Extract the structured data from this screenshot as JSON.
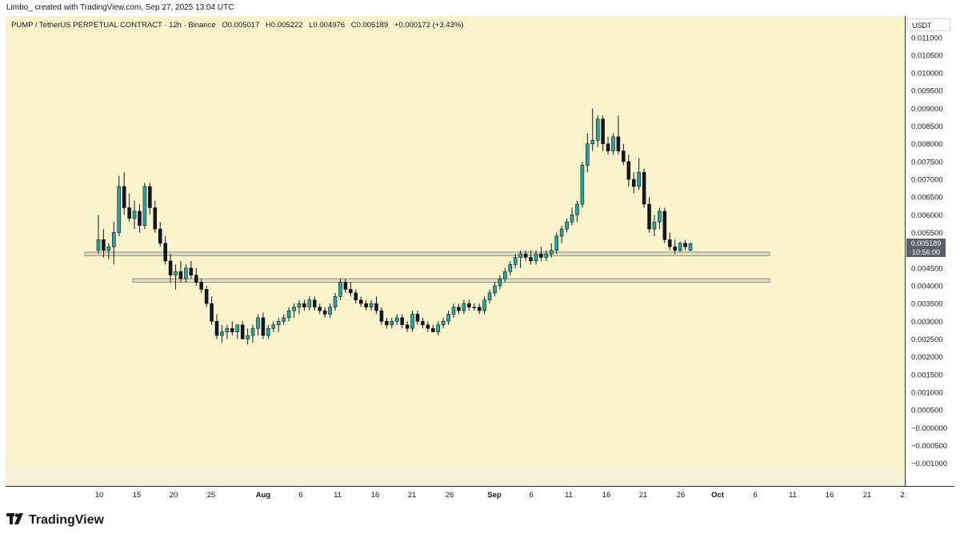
{
  "header": {
    "credit": "Limbo_ created with TradingView.com, Sep 27, 2025 13:04 UTC"
  },
  "legend": {
    "symbol": "PUMP / TetherUS PERPETUAL CONTRACT · 12h · Binance",
    "open": "O0.005017",
    "high": "H0.005222",
    "low": "L0.004976",
    "close": "C0.005189",
    "change": "+0.000172 (+3.43%)"
  },
  "price_axis": {
    "currency": "USDT",
    "ticks": [
      "0.011000",
      "0.010500",
      "0.010000",
      "0.009500",
      "0.009000",
      "0.008500",
      "0.008000",
      "0.007500",
      "0.007000",
      "0.006500",
      "0.006000",
      "0.005500",
      "0.004500",
      "0.004000",
      "0.003500",
      "0.003000",
      "0.002500",
      "0.002000",
      "0.001500",
      "0.001000",
      "0.000500",
      "−0.000000",
      "−0.000500",
      "−0.001000"
    ],
    "last_price": "0.005189",
    "countdown": "10:56:00"
  },
  "time_axis": {
    "ticks": [
      "10",
      "15",
      "20",
      "25",
      "Aug",
      "6",
      "11",
      "16",
      "21",
      "26",
      "Sep",
      "6",
      "11",
      "16",
      "21",
      "26",
      "Oct",
      "6",
      "11",
      "16",
      "21",
      "2"
    ]
  },
  "colors": {
    "background": "#faf4cd",
    "up": "#26a69a",
    "down": "#131722",
    "band": "#e2e0c4",
    "band_border": "#8e8c7a"
  },
  "logo": {
    "text": "TradingView"
  },
  "chart_data": {
    "type": "candlestick",
    "title": "PUMP / TetherUS PERPETUAL CONTRACT · 12h · Binance",
    "x_start": "Jul 9",
    "x_end": "Sep 27",
    "ylim": [
      -0.0011,
      0.0112
    ],
    "ohlc": [
      [
        0.005,
        0.006,
        0.0049,
        0.0053
      ],
      [
        0.0053,
        0.0056,
        0.0048,
        0.005
      ],
      [
        0.005,
        0.0052,
        0.00475,
        0.0051
      ],
      [
        0.0051,
        0.0058,
        0.0046,
        0.0055
      ],
      [
        0.0055,
        0.0071,
        0.0054,
        0.0068
      ],
      [
        0.0068,
        0.0072,
        0.006,
        0.0062
      ],
      [
        0.0062,
        0.0066,
        0.0058,
        0.0059
      ],
      [
        0.0059,
        0.0064,
        0.0056,
        0.0061
      ],
      [
        0.0061,
        0.0063,
        0.0055,
        0.0057
      ],
      [
        0.0057,
        0.0069,
        0.0056,
        0.0068
      ],
      [
        0.0068,
        0.0069,
        0.006,
        0.0062
      ],
      [
        0.0062,
        0.0064,
        0.0055,
        0.0056
      ],
      [
        0.0056,
        0.0058,
        0.0051,
        0.0052
      ],
      [
        0.0052,
        0.0054,
        0.0046,
        0.0047
      ],
      [
        0.0047,
        0.0049,
        0.0041,
        0.0043
      ],
      [
        0.0043,
        0.0046,
        0.0039,
        0.0044
      ],
      [
        0.0044,
        0.0047,
        0.0041,
        0.0042
      ],
      [
        0.0042,
        0.0046,
        0.0041,
        0.0045
      ],
      [
        0.0045,
        0.0047,
        0.0042,
        0.0043
      ],
      [
        0.0043,
        0.0045,
        0.004,
        0.0041
      ],
      [
        0.0041,
        0.0042,
        0.0038,
        0.0039
      ],
      [
        0.0039,
        0.004,
        0.0034,
        0.0035
      ],
      [
        0.0035,
        0.0037,
        0.0029,
        0.003
      ],
      [
        0.003,
        0.0032,
        0.0025,
        0.0026
      ],
      [
        0.0026,
        0.0029,
        0.0024,
        0.0027
      ],
      [
        0.0027,
        0.0029,
        0.0025,
        0.0028
      ],
      [
        0.0028,
        0.003,
        0.0026,
        0.0027
      ],
      [
        0.0027,
        0.0029,
        0.0025,
        0.0029
      ],
      [
        0.0029,
        0.003,
        0.0025,
        0.0025
      ],
      [
        0.0025,
        0.0028,
        0.00235,
        0.0026
      ],
      [
        0.0026,
        0.0029,
        0.0024,
        0.0028
      ],
      [
        0.0028,
        0.0032,
        0.0026,
        0.0031
      ],
      [
        0.0031,
        0.00325,
        0.0025,
        0.0026
      ],
      [
        0.0026,
        0.0029,
        0.0025,
        0.0028
      ],
      [
        0.0028,
        0.003,
        0.0027,
        0.0029
      ],
      [
        0.0029,
        0.0031,
        0.0027,
        0.003
      ],
      [
        0.003,
        0.0032,
        0.0029,
        0.0031
      ],
      [
        0.0031,
        0.0034,
        0.003,
        0.0033
      ],
      [
        0.0033,
        0.0035,
        0.0031,
        0.0034
      ],
      [
        0.0034,
        0.0036,
        0.0032,
        0.0035
      ],
      [
        0.0035,
        0.0036,
        0.0033,
        0.0034
      ],
      [
        0.0034,
        0.0037,
        0.0033,
        0.0036
      ],
      [
        0.0036,
        0.0037,
        0.0033,
        0.0034
      ],
      [
        0.0034,
        0.0035,
        0.0032,
        0.0033
      ],
      [
        0.0033,
        0.0034,
        0.0031,
        0.0032
      ],
      [
        0.0032,
        0.0035,
        0.0031,
        0.0034
      ],
      [
        0.0034,
        0.0038,
        0.0033,
        0.0037
      ],
      [
        0.0037,
        0.0042,
        0.0036,
        0.0041
      ],
      [
        0.0041,
        0.0042,
        0.0038,
        0.0039
      ],
      [
        0.0039,
        0.0041,
        0.0037,
        0.0038
      ],
      [
        0.0038,
        0.0039,
        0.0035,
        0.0036
      ],
      [
        0.0036,
        0.0037,
        0.0034,
        0.0035
      ],
      [
        0.0035,
        0.0036,
        0.0033,
        0.0034
      ],
      [
        0.0034,
        0.0036,
        0.0033,
        0.0035
      ],
      [
        0.0035,
        0.0037,
        0.0032,
        0.0033
      ],
      [
        0.0033,
        0.0034,
        0.0029,
        0.003
      ],
      [
        0.003,
        0.0031,
        0.0028,
        0.0029
      ],
      [
        0.0029,
        0.0031,
        0.0028,
        0.003
      ],
      [
        0.003,
        0.0032,
        0.0029,
        0.0031
      ],
      [
        0.0031,
        0.0032,
        0.0028,
        0.0029
      ],
      [
        0.0029,
        0.003,
        0.0027,
        0.0028
      ],
      [
        0.0028,
        0.0033,
        0.0027,
        0.0032
      ],
      [
        0.0032,
        0.0033,
        0.0029,
        0.003
      ],
      [
        0.003,
        0.0031,
        0.0028,
        0.0029
      ],
      [
        0.0029,
        0.003,
        0.0027,
        0.0028
      ],
      [
        0.0028,
        0.0029,
        0.0027,
        0.0027
      ],
      [
        0.0027,
        0.003,
        0.0026,
        0.0029
      ],
      [
        0.0029,
        0.0031,
        0.0028,
        0.003
      ],
      [
        0.003,
        0.0033,
        0.0029,
        0.0032
      ],
      [
        0.0032,
        0.0035,
        0.0031,
        0.0034
      ],
      [
        0.0034,
        0.0035,
        0.0032,
        0.0033
      ],
      [
        0.0033,
        0.0036,
        0.0032,
        0.0035
      ],
      [
        0.0035,
        0.0036,
        0.0033,
        0.0034
      ],
      [
        0.0034,
        0.0035,
        0.0033,
        0.0034
      ],
      [
        0.0034,
        0.0035,
        0.0032,
        0.0033
      ],
      [
        0.0033,
        0.0037,
        0.0032,
        0.0036
      ],
      [
        0.0036,
        0.0039,
        0.0035,
        0.0038
      ],
      [
        0.0038,
        0.0041,
        0.0037,
        0.004
      ],
      [
        0.004,
        0.0043,
        0.0039,
        0.0042
      ],
      [
        0.0042,
        0.0045,
        0.0041,
        0.0044
      ],
      [
        0.0044,
        0.0047,
        0.0043,
        0.0046
      ],
      [
        0.0046,
        0.0049,
        0.0045,
        0.0048
      ],
      [
        0.0048,
        0.005,
        0.0045,
        0.0049
      ],
      [
        0.0049,
        0.005,
        0.0047,
        0.0048
      ],
      [
        0.0048,
        0.005,
        0.0046,
        0.0047
      ],
      [
        0.0047,
        0.005,
        0.0046,
        0.0049
      ],
      [
        0.0049,
        0.0051,
        0.0047,
        0.0048
      ],
      [
        0.0048,
        0.005,
        0.0047,
        0.0049
      ],
      [
        0.0049,
        0.0052,
        0.0048,
        0.005
      ],
      [
        0.005,
        0.0055,
        0.0049,
        0.0054
      ],
      [
        0.0054,
        0.0057,
        0.0052,
        0.0056
      ],
      [
        0.0056,
        0.0059,
        0.0055,
        0.0058
      ],
      [
        0.0058,
        0.0062,
        0.0057,
        0.006
      ],
      [
        0.006,
        0.0064,
        0.0058,
        0.0063
      ],
      [
        0.0063,
        0.0075,
        0.0062,
        0.0074
      ],
      [
        0.0074,
        0.0083,
        0.0072,
        0.008
      ],
      [
        0.008,
        0.009,
        0.0078,
        0.0081
      ],
      [
        0.0081,
        0.0088,
        0.0079,
        0.0087
      ],
      [
        0.0087,
        0.0088,
        0.0078,
        0.008
      ],
      [
        0.008,
        0.0082,
        0.0077,
        0.0078
      ],
      [
        0.0078,
        0.0083,
        0.0077,
        0.0082
      ],
      [
        0.0082,
        0.0088,
        0.0077,
        0.0078
      ],
      [
        0.0078,
        0.008,
        0.0074,
        0.0075
      ],
      [
        0.0075,
        0.0077,
        0.0068,
        0.007
      ],
      [
        0.007,
        0.0072,
        0.0066,
        0.0068
      ],
      [
        0.0068,
        0.0076,
        0.0067,
        0.0072
      ],
      [
        0.0072,
        0.0073,
        0.0062,
        0.0063
      ],
      [
        0.0063,
        0.0065,
        0.0055,
        0.0056
      ],
      [
        0.0056,
        0.006,
        0.0054,
        0.0058
      ],
      [
        0.0058,
        0.0062,
        0.0056,
        0.0061
      ],
      [
        0.0061,
        0.0062,
        0.0052,
        0.0053
      ],
      [
        0.0053,
        0.0055,
        0.005,
        0.0051
      ],
      [
        0.0051,
        0.0053,
        0.0049,
        0.005
      ],
      [
        0.005,
        0.00525,
        0.00495,
        0.0052
      ],
      [
        0.0052,
        0.0053,
        0.005,
        0.0051
      ],
      [
        0.005,
        0.005222,
        0.004976,
        0.005189
      ]
    ],
    "horizontal_zones": [
      [
        0.00485,
        0.00495
      ],
      [
        0.0041,
        0.0042
      ]
    ],
    "last_price": 0.005189
  }
}
